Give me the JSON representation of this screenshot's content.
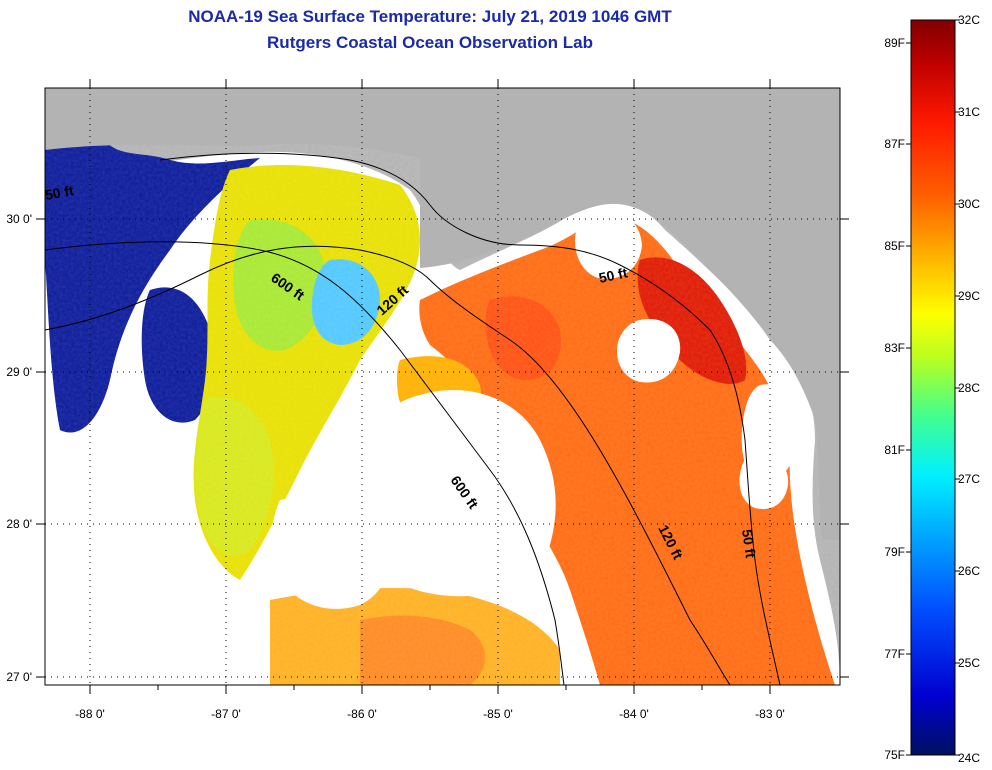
{
  "title": {
    "line1": "NOAA-19 Sea Surface Temperature:  July 21, 2019 1046 GMT",
    "line2": "Rutgers Coastal Ocean Observation Lab"
  },
  "map": {
    "land_color": "#b3b3b3",
    "no_data_color": "#ffffff",
    "lon_labels": [
      "-88 0'",
      "-87 0'",
      "-86 0'",
      "-85 0'",
      "-84 0'",
      "-83 0'"
    ],
    "lat_labels": [
      "30 0'",
      "29 0'",
      "28 0'",
      "27 0'"
    ],
    "depth_contour_labels": [
      "600 ft",
      "120 ft",
      "50 ft",
      "600 ft",
      "120 ft",
      "50 ft",
      "50 ft"
    ]
  },
  "colorbar": {
    "celsius_labels": [
      "32C",
      "31C",
      "30C",
      "29C",
      "28C",
      "27C",
      "26C",
      "25C",
      "24C"
    ],
    "fahrenheit_labels": [
      "89F",
      "87F",
      "85F",
      "83F",
      "81F",
      "79F",
      "77F",
      "75F"
    ],
    "stops": [
      "#001060",
      "#0000d0",
      "#0050ff",
      "#00a8ff",
      "#00f0ff",
      "#40ff90",
      "#b8ff20",
      "#ffff00",
      "#ffb000",
      "#ff6000",
      "#ff1a00",
      "#c00000",
      "#800000"
    ]
  }
}
